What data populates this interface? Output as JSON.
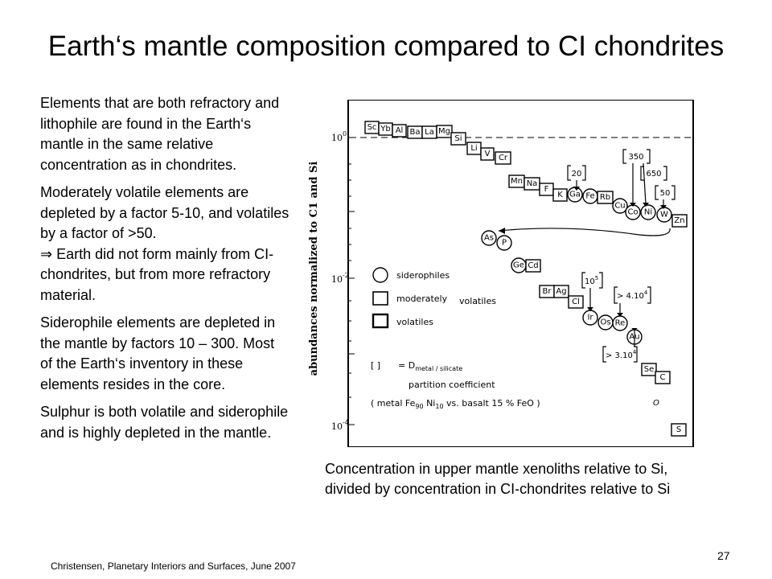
{
  "slide": {
    "title": "Earth‘s mantle composition compared to CI chondrites",
    "paragraphs": [
      "Elements that are both refractory and lithophile are found in the Earth‘s mantle in the same relative concentration as in chondrites.",
      "Moderately volatile elements are depleted by a factor 5-10, and volatiles by a factor of >50.",
      "⇒ Earth did not form mainly from CI-chondrites, but from more refractory material.",
      "Siderophile elements are depleted in the mantle by factors 10 – 300. Most of the Earth‘s inventory in these elements resides in the core.",
      "Sulphur is both volatile and siderophile and is highly depleted in the mantle."
    ],
    "caption_line1": "Concentration in upper mantle xenoliths relative to Si,",
    "caption_line2": "divided by concentration in CI-chondrites relative to Si",
    "footer": "Christensen, Planetary Interiors and Surfaces, June 2007",
    "page_number": "27"
  },
  "figure": {
    "ylabel": "abundances normalized to C1 and Si",
    "ticks": [
      "10",
      "10",
      "10"
    ],
    "tick_exponents": [
      "0",
      "-2",
      "-4"
    ],
    "elements": {
      "Sc": "Sc",
      "Yb": "Yb",
      "Al": "Al",
      "Ba": "Ba",
      "La": "La",
      "Mg": "Mg",
      "Si": "Si",
      "Li": "Li",
      "V": "V",
      "Cr": "Cr",
      "Mn": "Mn",
      "Na": "Na",
      "F": "F",
      "K": "K",
      "Ga": "Ga",
      "Fe": "Fe",
      "Rb": "Rb",
      "Cu": "Cu",
      "Co": "Co",
      "Ni": "Ni",
      "W": "W",
      "Zn": "Zn",
      "As": "As",
      "P": "P",
      "Ge": "Ge",
      "Cd": "Cd",
      "Br": "Br",
      "Ag": "Ag",
      "Cl": "Cl",
      "Ir": "Ir",
      "Os": "Os",
      "Re": "Re",
      "Au": "Au",
      "Se": "Se",
      "C": "C",
      "S": "S"
    },
    "annotations": {
      "a20": "20",
      "a350": "350",
      "a650": "650",
      "a50": "50",
      "a105_base": "10",
      "a105_exp": "5",
      "a4_base": "> 4.10",
      "a4_exp": "4",
      "a3_base": "> 3.10",
      "a3_exp": "4",
      "o_mark": "O"
    },
    "legend": {
      "siderophiles": "siderophiles",
      "moderately": "moderately",
      "volatiles_mod": "volatiles",
      "volatiles": "volatiles",
      "bracket": "[  ]",
      "d_eq": "= D",
      "d_sub": "metal / silicate",
      "partition": "partition    coefficient",
      "metal_line": "( metal   Fe",
      "fe_sub": "90",
      "ni": "Ni",
      "ni_sub": "10",
      "vs_line": "vs.  basalt   15 % FeO )"
    }
  }
}
